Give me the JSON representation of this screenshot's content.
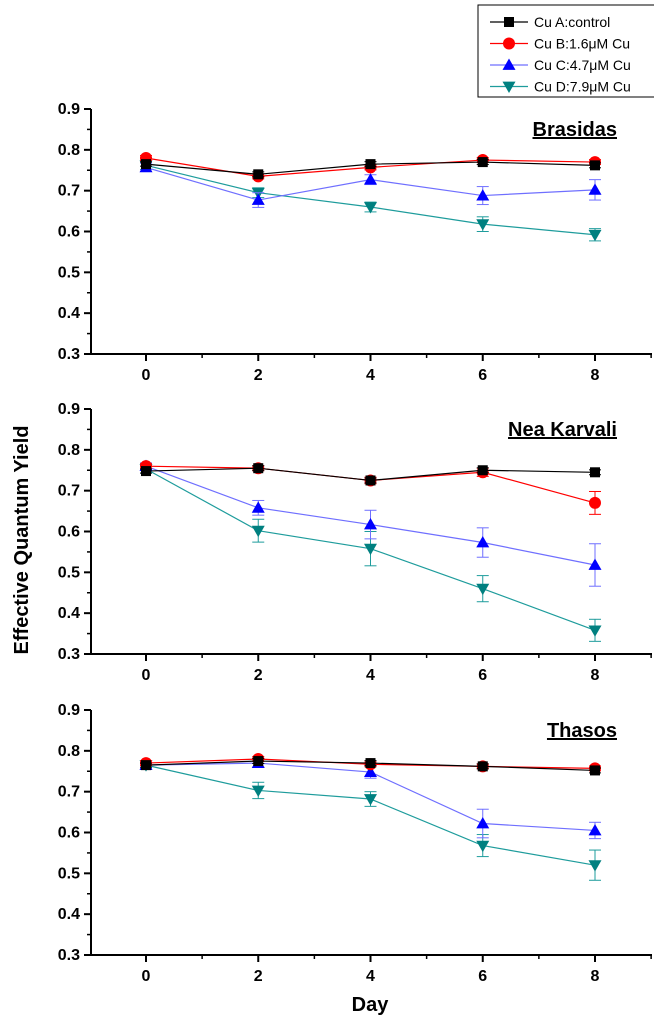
{
  "figure": {
    "ylabel": "Effective Quantum Yield",
    "xlabel": "Day"
  },
  "legend": {
    "position": "top-right",
    "entries": [
      {
        "name": "Cu A:control",
        "marker": "square",
        "color": "#000000",
        "line_color": "#000000"
      },
      {
        "name": "Cu B:1.6μM Cu",
        "marker": "circle",
        "color": "#ff0000",
        "line_color": "#ff0000"
      },
      {
        "name": "Cu C:4.7μM Cu",
        "marker": "triangle-up",
        "color": "#0000ff",
        "line_color": "#6f6fff"
      },
      {
        "name": "Cu D:7.9μM Cu",
        "marker": "triangle-down",
        "color": "#008080",
        "line_color": "#1e9c9c"
      }
    ]
  },
  "chart_data": [
    {
      "type": "line",
      "title": "Brasidas",
      "x": [
        0,
        2,
        4,
        6,
        8
      ],
      "xticks": [
        "0",
        "2",
        "4",
        "6",
        "8"
      ],
      "ylim": [
        0.3,
        0.9
      ],
      "yticks": [
        "0.3",
        "0.4",
        "0.5",
        "0.6",
        "0.7",
        "0.8",
        "0.9"
      ],
      "grid": false,
      "series": [
        {
          "name": "Cu A:control",
          "values": [
            0.765,
            0.74,
            0.765,
            0.77,
            0.762
          ],
          "errors": [
            0.005,
            0.006,
            0.006,
            0.006,
            0.006
          ]
        },
        {
          "name": "Cu B:1.6μM Cu",
          "values": [
            0.78,
            0.735,
            0.757,
            0.775,
            0.77
          ],
          "errors": [
            0.006,
            0.006,
            0.006,
            0.006,
            0.006
          ]
        },
        {
          "name": "Cu C:4.7μM Cu",
          "values": [
            0.757,
            0.677,
            0.727,
            0.688,
            0.702
          ],
          "errors": [
            0.01,
            0.018,
            0.012,
            0.022,
            0.025
          ]
        },
        {
          "name": "Cu D:7.9μM Cu",
          "values": [
            0.762,
            0.695,
            0.66,
            0.618,
            0.592
          ],
          "errors": [
            0.01,
            0.012,
            0.012,
            0.018,
            0.015
          ]
        }
      ]
    },
    {
      "type": "line",
      "title": "Nea Karvali",
      "x": [
        0,
        2,
        4,
        6,
        8
      ],
      "xticks": [
        "0",
        "2",
        "4",
        "6",
        "8"
      ],
      "ylim": [
        0.3,
        0.9
      ],
      "yticks": [
        "0.3",
        "0.4",
        "0.5",
        "0.6",
        "0.7",
        "0.8",
        "0.9"
      ],
      "grid": false,
      "series": [
        {
          "name": "Cu A:control",
          "values": [
            0.748,
            0.755,
            0.725,
            0.75,
            0.745
          ],
          "errors": [
            0.005,
            0.006,
            0.006,
            0.006,
            0.006
          ]
        },
        {
          "name": "Cu B:1.6μM Cu",
          "values": [
            0.76,
            0.755,
            0.725,
            0.745,
            0.67
          ],
          "errors": [
            0.006,
            0.006,
            0.008,
            0.01,
            0.028
          ]
        },
        {
          "name": "Cu C:4.7μM Cu",
          "values": [
            0.76,
            0.658,
            0.617,
            0.573,
            0.518
          ],
          "errors": [
            0.008,
            0.018,
            0.035,
            0.036,
            0.052
          ]
        },
        {
          "name": "Cu D:7.9μM Cu",
          "values": [
            0.753,
            0.602,
            0.558,
            0.46,
            0.358
          ],
          "errors": [
            0.01,
            0.028,
            0.042,
            0.032,
            0.027
          ]
        }
      ]
    },
    {
      "type": "line",
      "title": "Thasos",
      "x": [
        0,
        2,
        4,
        6,
        8
      ],
      "xticks": [
        "0",
        "2",
        "4",
        "6",
        "8"
      ],
      "ylim": [
        0.3,
        0.9
      ],
      "yticks": [
        "0.3",
        "0.4",
        "0.5",
        "0.6",
        "0.7",
        "0.8",
        "0.9"
      ],
      "grid": false,
      "series": [
        {
          "name": "Cu A:control",
          "values": [
            0.765,
            0.775,
            0.77,
            0.762,
            0.752
          ],
          "errors": [
            0.005,
            0.006,
            0.006,
            0.006,
            0.006
          ]
        },
        {
          "name": "Cu B:1.6μM Cu",
          "values": [
            0.77,
            0.78,
            0.767,
            0.762,
            0.757
          ],
          "errors": [
            0.006,
            0.006,
            0.006,
            0.006,
            0.006
          ]
        },
        {
          "name": "Cu C:4.7μM Cu",
          "values": [
            0.765,
            0.77,
            0.748,
            0.622,
            0.605
          ],
          "errors": [
            0.008,
            0.01,
            0.015,
            0.035,
            0.02
          ]
        },
        {
          "name": "Cu D:7.9μM Cu",
          "values": [
            0.765,
            0.703,
            0.682,
            0.568,
            0.52
          ],
          "errors": [
            0.008,
            0.02,
            0.018,
            0.027,
            0.037
          ]
        }
      ]
    }
  ]
}
